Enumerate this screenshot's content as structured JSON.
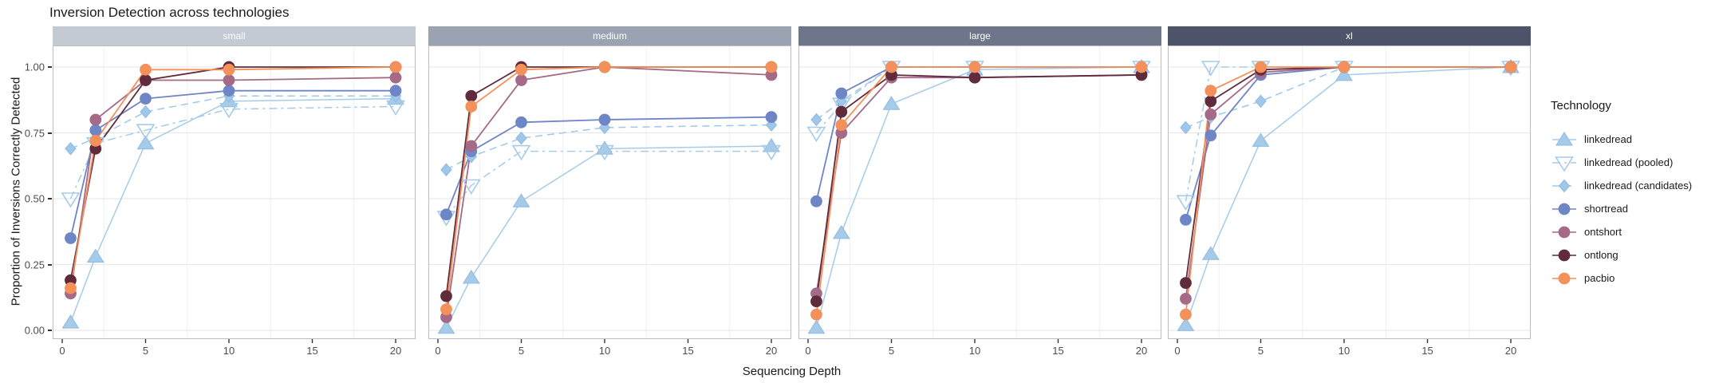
{
  "title": "Inversion Detection across technologies",
  "axes": {
    "x_label": "Sequencing Depth",
    "y_label": "Proportion of Inversions Correctly Detected",
    "x_tick_labels": [
      "0",
      "5",
      "10",
      "15",
      "20"
    ],
    "y_tick_labels": [
      "1.00",
      "0.75",
      "0.50",
      "0.25",
      "0.00"
    ]
  },
  "legend": {
    "title": "Technology",
    "entries": [
      "linkedread",
      "linkedread (pooled)",
      "linkedread (candidates)",
      "shortread",
      "ontshort",
      "ontlong",
      "pacbio"
    ]
  },
  "chart_data": {
    "type": "line",
    "title": "Inversion Detection across technologies",
    "xlabel": "Sequencing Depth",
    "ylabel": "Proportion of Inversions Correctly Detected",
    "x": [
      0.5,
      2,
      5,
      10,
      20
    ],
    "xlim": [
      0,
      20
    ],
    "ylim": [
      0,
      1
    ],
    "x_ticks": [
      0,
      5,
      10,
      15,
      20
    ],
    "x_minor_gridlines": [
      2.5,
      7.5,
      12.5,
      17.5
    ],
    "y_ticks": [
      0,
      0.25,
      0.5,
      0.75,
      1.0
    ],
    "grid": true,
    "legend_position": "right",
    "series_styles": [
      {
        "name": "linkedread",
        "color": "#a6cbe9",
        "edge": "#8fb9e0",
        "marker": "triangle-up",
        "line": "solid"
      },
      {
        "name": "linkedread (pooled)",
        "color": "#a6cbe9",
        "edge": "#a6cbe9",
        "marker": "triangle-down-open",
        "line": "dashdot"
      },
      {
        "name": "linkedread (candidates)",
        "color": "#9ec7ea",
        "edge": "#8fb9e0",
        "marker": "diamond",
        "line": "dashed"
      },
      {
        "name": "shortread",
        "color": "#6e85c6",
        "edge": "#6e85c6",
        "marker": "circle",
        "line": "solid"
      },
      {
        "name": "ontshort",
        "color": "#a46a87",
        "edge": "#a46a87",
        "marker": "circle",
        "line": "solid"
      },
      {
        "name": "ontlong",
        "color": "#602b3a",
        "edge": "#602b3a",
        "marker": "circle",
        "line": "solid"
      },
      {
        "name": "pacbio",
        "color": "#f4915a",
        "edge": "#f4915a",
        "marker": "circle",
        "line": "solid"
      }
    ],
    "facets": [
      {
        "label": "small",
        "strip_color": "#c4cad3",
        "series": [
          {
            "name": "linkedread",
            "values": [
              0.03,
              0.28,
              0.71,
              0.87,
              0.88
            ]
          },
          {
            "name": "linkedread (pooled)",
            "values": [
              0.5,
              0.71,
              0.76,
              0.84,
              0.85
            ]
          },
          {
            "name": "linkedread (candidates)",
            "values": [
              0.69,
              0.73,
              0.83,
              0.89,
              0.89
            ]
          },
          {
            "name": "shortread",
            "values": [
              0.35,
              0.76,
              0.88,
              0.91,
              0.91
            ]
          },
          {
            "name": "ontshort",
            "values": [
              0.14,
              0.8,
              0.95,
              0.95,
              0.96
            ]
          },
          {
            "name": "ontlong",
            "values": [
              0.19,
              0.69,
              0.95,
              1.0,
              1.0
            ]
          },
          {
            "name": "pacbio",
            "values": [
              0.16,
              0.72,
              0.99,
              0.99,
              1.0
            ]
          }
        ]
      },
      {
        "label": "medium",
        "strip_color": "#9aa3b2",
        "series": [
          {
            "name": "linkedread",
            "values": [
              0.01,
              0.2,
              0.49,
              0.69,
              0.7
            ]
          },
          {
            "name": "linkedread (pooled)",
            "values": [
              0.43,
              0.55,
              0.68,
              0.68,
              0.68
            ]
          },
          {
            "name": "linkedread (candidates)",
            "values": [
              0.61,
              0.66,
              0.73,
              0.77,
              0.78
            ]
          },
          {
            "name": "shortread",
            "values": [
              0.44,
              0.68,
              0.79,
              0.8,
              0.81
            ]
          },
          {
            "name": "ontshort",
            "values": [
              0.05,
              0.7,
              0.95,
              1.0,
              0.97
            ]
          },
          {
            "name": "ontlong",
            "values": [
              0.13,
              0.89,
              1.0,
              1.0,
              1.0
            ]
          },
          {
            "name": "pacbio",
            "values": [
              0.08,
              0.85,
              0.99,
              1.0,
              1.0
            ]
          }
        ]
      },
      {
        "label": "large",
        "strip_color": "#6e7689",
        "series": [
          {
            "name": "linkedread",
            "values": [
              0.01,
              0.37,
              0.86,
              0.99,
              1.0
            ]
          },
          {
            "name": "linkedread (pooled)",
            "values": [
              0.75,
              0.86,
              1.0,
              1.0,
              1.0
            ]
          },
          {
            "name": "linkedread (candidates)",
            "values": [
              0.8,
              0.87,
              1.0,
              1.0,
              1.0
            ]
          },
          {
            "name": "shortread",
            "values": [
              0.49,
              0.9,
              1.0,
              1.0,
              1.0
            ]
          },
          {
            "name": "ontshort",
            "values": [
              0.14,
              0.75,
              0.96,
              0.96,
              0.97
            ]
          },
          {
            "name": "ontlong",
            "values": [
              0.11,
              0.83,
              0.97,
              0.96,
              0.97
            ]
          },
          {
            "name": "pacbio",
            "values": [
              0.06,
              0.78,
              1.0,
              1.0,
              1.0
            ]
          }
        ]
      },
      {
        "label": "xl",
        "strip_color": "#4d5369",
        "series": [
          {
            "name": "linkedread",
            "values": [
              0.02,
              0.29,
              0.72,
              0.97,
              1.0
            ]
          },
          {
            "name": "linkedread (pooled)",
            "values": [
              0.49,
              1.0,
              1.0,
              1.0,
              1.0
            ]
          },
          {
            "name": "linkedread (candidates)",
            "values": [
              0.77,
              0.81,
              0.87,
              1.0,
              1.0
            ]
          },
          {
            "name": "shortread",
            "values": [
              0.42,
              0.74,
              0.97,
              1.0,
              1.0
            ]
          },
          {
            "name": "ontshort",
            "values": [
              0.12,
              0.82,
              0.98,
              1.0,
              1.0
            ]
          },
          {
            "name": "ontlong",
            "values": [
              0.18,
              0.87,
              0.99,
              1.0,
              1.0
            ]
          },
          {
            "name": "pacbio",
            "values": [
              0.06,
              0.91,
              1.0,
              1.0,
              1.0
            ]
          }
        ]
      }
    ]
  },
  "style": {
    "panel_border": "#bdbdbd",
    "grid_major": "#e6e6e6",
    "grid_minor": "#f0f0f0",
    "tick_color": "#333333",
    "tick_text": "#4d4d4d"
  }
}
